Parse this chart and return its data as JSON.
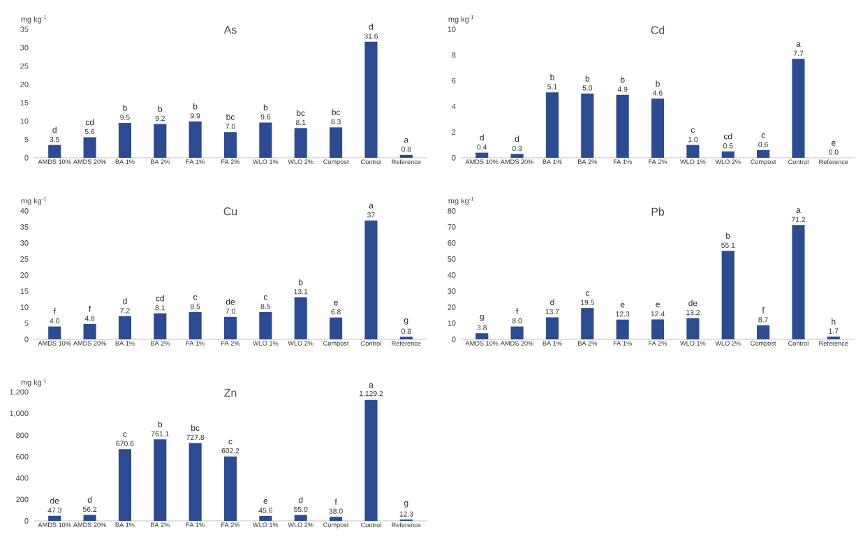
{
  "chart_data": [
    {
      "type": "bar",
      "title": "As",
      "ylabel": "mg kg$^{-1}$",
      "color": "#2b4c93",
      "ylim": [
        0,
        35
      ],
      "yticks": [
        0,
        5,
        10,
        15,
        20,
        25,
        30,
        35
      ],
      "categories": [
        "AMDS 10%",
        "AMDS 20%",
        "BA 1%",
        "BA 2%",
        "FA 1%",
        "FA 2%",
        "WLO 1%",
        "WLO 2%",
        "Compost",
        "Control",
        "Reference"
      ],
      "values": [
        3.5,
        5.6,
        9.5,
        9.2,
        9.9,
        7.0,
        9.6,
        8.1,
        8.3,
        31.6,
        0.8
      ],
      "value_labels": [
        "3.5",
        "5.6",
        "9.5",
        "9.2",
        "9.9",
        "7.0",
        "9.6",
        "8.1",
        "8.3",
        "31.6",
        "0.8"
      ],
      "annotations": [
        {
          "text": "d",
          "x": "AMDS 10%",
          "y": 3.5
        },
        {
          "text": "cd",
          "x": "AMDS 20%",
          "y": 5.6
        },
        {
          "text": "b",
          "x": "BA 1%",
          "y": 9.5
        },
        {
          "text": "b",
          "x": "BA 2%",
          "y": 9.2
        },
        {
          "text": "b",
          "x": "FA 1%",
          "y": 9.9
        },
        {
          "text": "bc",
          "x": "FA 2%",
          "y": 7.0
        },
        {
          "text": "b",
          "x": "WLO 1%",
          "y": 9.6
        },
        {
          "text": "bc",
          "x": "WLO 2%",
          "y": 8.1
        },
        {
          "text": "bc",
          "x": "Compost",
          "y": 8.3
        },
        {
          "text": "d",
          "x": "Control",
          "y": 31.6
        },
        {
          "text": "a",
          "x": "Reference",
          "y": 0.8
        }
      ]
    },
    {
      "type": "bar",
      "title": "Cd",
      "ylabel": "mg kg$^{-1}$",
      "color": "#2b4c93",
      "ylim": [
        0,
        10
      ],
      "yticks": [
        0,
        2,
        4,
        6,
        8,
        10
      ],
      "categories": [
        "AMDS 10%",
        "AMDS 20%",
        "BA 1%",
        "BA 2%",
        "FA 1%",
        "FA 2%",
        "WLO 1%",
        "WLO 2%",
        "Compost",
        "Control",
        "Reference"
      ],
      "values": [
        0.4,
        0.3,
        5.1,
        5.0,
        4.9,
        4.6,
        1.0,
        0.5,
        0.6,
        7.7,
        0.0
      ],
      "value_labels": [
        "0.4",
        "0.3",
        "5.1",
        "5.0",
        "4.9",
        "4.6",
        "1.0",
        "0.5",
        "0.6",
        "7.7",
        "0.0"
      ],
      "annotations": [
        {
          "text": "d",
          "x": "AMDS 10%",
          "y": 0.4
        },
        {
          "text": "d",
          "x": "AMDS 20%",
          "y": 0.3
        },
        {
          "text": "b",
          "x": "BA 1%",
          "y": 5.1
        },
        {
          "text": "b",
          "x": "BA 2%",
          "y": 5.0
        },
        {
          "text": "b",
          "x": "FA 1%",
          "y": 4.9
        },
        {
          "text": "b",
          "x": "FA 2%",
          "y": 4.6
        },
        {
          "text": "c",
          "x": "WLO 1%",
          "y": 1.0
        },
        {
          "text": "cd",
          "x": "WLO 2%",
          "y": 0.5
        },
        {
          "text": "c",
          "x": "Compost",
          "y": 0.6
        },
        {
          "text": "a",
          "x": "Control",
          "y": 7.7
        },
        {
          "text": "e",
          "x": "Reference",
          "y": 0.0
        }
      ]
    },
    {
      "type": "bar",
      "title": "Cu",
      "ylabel": "mg kg$^{-1}$",
      "color": "#2b4c93",
      "ylim": [
        0,
        40
      ],
      "yticks": [
        0,
        5,
        10,
        15,
        20,
        25,
        30,
        35,
        40
      ],
      "categories": [
        "AMDS 10%",
        "AMDS 20%",
        "BA 1%",
        "BA 2%",
        "FA 1%",
        "FA 2%",
        "WLO 1%",
        "WLO 2%",
        "Compost",
        "Control",
        "Reference"
      ],
      "values": [
        4.0,
        4.8,
        7.2,
        8.1,
        8.5,
        7.0,
        8.5,
        13.1,
        6.8,
        37,
        0.8
      ],
      "value_labels": [
        "4.0",
        "4.8",
        "7.2",
        "8.1",
        "8.5",
        "7.0",
        "8.5",
        "13.1",
        "6.8",
        "37",
        "0.8"
      ],
      "annotations": [
        {
          "text": "f",
          "x": "AMDS 10%",
          "y": 4.0
        },
        {
          "text": "f",
          "x": "AMDS 20%",
          "y": 4.8
        },
        {
          "text": "d",
          "x": "BA 1%",
          "y": 7.2
        },
        {
          "text": "cd",
          "x": "BA 2%",
          "y": 8.1
        },
        {
          "text": "c",
          "x": "FA 1%",
          "y": 8.5
        },
        {
          "text": "de",
          "x": "FA 2%",
          "y": 7.0
        },
        {
          "text": "c",
          "x": "WLO 1%",
          "y": 8.5
        },
        {
          "text": "b",
          "x": "WLO 2%",
          "y": 13.1
        },
        {
          "text": "e",
          "x": "Compost",
          "y": 6.8
        },
        {
          "text": "a",
          "x": "Control",
          "y": 37
        },
        {
          "text": "g",
          "x": "Reference",
          "y": 0.8
        }
      ]
    },
    {
      "type": "bar",
      "title": "Pb",
      "ylabel": "mg kg$^{-1}$",
      "color": "#2b4c93",
      "ylim": [
        0,
        80
      ],
      "yticks": [
        0,
        10,
        20,
        30,
        40,
        50,
        60,
        70,
        80
      ],
      "categories": [
        "AMDS 10%",
        "AMDS 20%",
        "BA 1%",
        "BA 2%",
        "FA 1%",
        "FA 2%",
        "WLO 1%",
        "WLO 2%",
        "Compost",
        "Control",
        "Reference"
      ],
      "values": [
        3.8,
        8.0,
        13.7,
        19.5,
        12.3,
        12.4,
        13.2,
        55.1,
        8.7,
        71.2,
        1.7
      ],
      "value_labels": [
        "3.8",
        "8.0",
        "13.7",
        "19.5",
        "12.3",
        "12.4",
        "13.2",
        "55.1",
        "8.7",
        "71.2",
        "1.7"
      ],
      "annotations": [
        {
          "text": "g",
          "x": "AMDS 10%",
          "y": 3.8
        },
        {
          "text": "f",
          "x": "AMDS 20%",
          "y": 8.0
        },
        {
          "text": "d",
          "x": "BA 1%",
          "y": 13.7
        },
        {
          "text": "c",
          "x": "BA 2%",
          "y": 19.5
        },
        {
          "text": "e",
          "x": "FA 1%",
          "y": 12.3
        },
        {
          "text": "e",
          "x": "FA 2%",
          "y": 12.4
        },
        {
          "text": "de",
          "x": "WLO 1%",
          "y": 13.2
        },
        {
          "text": "b",
          "x": "WLO 2%",
          "y": 55.1
        },
        {
          "text": "f",
          "x": "Compost",
          "y": 8.7
        },
        {
          "text": "a",
          "x": "Control",
          "y": 71.2
        },
        {
          "text": "h",
          "x": "Reference",
          "y": 1.7
        }
      ]
    },
    {
      "type": "bar",
      "title": "Zn",
      "ylabel": "mg kg$^{-1}$",
      "color": "#2b4c93",
      "ylim": [
        0,
        1200
      ],
      "yticks": [
        0,
        200,
        400,
        600,
        800,
        {
          "value": 1000,
          "label": "1,000"
        },
        {
          "value": 1200,
          "label": "1,200"
        }
      ],
      "categories": [
        "AMDS 10%",
        "AMDS 20%",
        "BA 1%",
        "BA 2%",
        "FA 1%",
        "FA 2%",
        "WLO 1%",
        "WLO 2%",
        "Compost",
        "Control",
        "Reference"
      ],
      "values": [
        47.3,
        56.2,
        670.6,
        761.1,
        727.8,
        602.2,
        45.6,
        55.0,
        38.0,
        1129.2,
        12.3
      ],
      "value_labels": [
        "47.3",
        "56.2",
        "670.6",
        "761.1",
        "727.8",
        "602.2",
        "45.6",
        "55.0",
        "38.0",
        "1,129.2",
        "12.3"
      ],
      "annotations": [
        {
          "text": "de",
          "x": "AMDS 10%",
          "y": 47.3
        },
        {
          "text": "d",
          "x": "AMDS 20%",
          "y": 56.2
        },
        {
          "text": "c",
          "x": "BA 1%",
          "y": 670.6
        },
        {
          "text": "b",
          "x": "BA 2%",
          "y": 761.1
        },
        {
          "text": "bc",
          "x": "FA 1%",
          "y": 727.8
        },
        {
          "text": "c",
          "x": "FA 2%",
          "y": 602.2
        },
        {
          "text": "e",
          "x": "WLO 1%",
          "y": 45.6
        },
        {
          "text": "d",
          "x": "WLO 2%",
          "y": 55.0
        },
        {
          "text": "f",
          "x": "Compost",
          "y": 38.0
        },
        {
          "text": "a",
          "x": "Control",
          "y": 1129.2
        },
        {
          "text": "g",
          "x": "Reference",
          "y": 12.3
        }
      ]
    }
  ]
}
